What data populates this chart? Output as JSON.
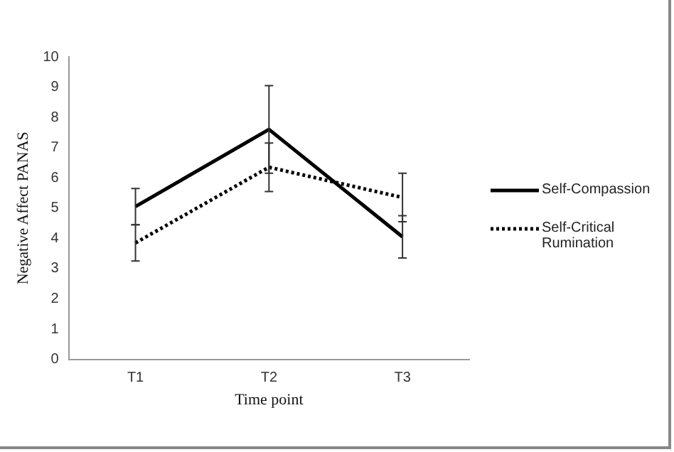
{
  "chart_data": {
    "type": "line",
    "xlabel": "Time point",
    "ylabel": "Negative Affect PANAS",
    "categories": [
      "T1",
      "T2",
      "T3"
    ],
    "series": [
      {
        "name": "Self-Compassion",
        "color": "#000000",
        "line_style": "solid",
        "values": [
          5.05,
          7.6,
          4.05
        ],
        "errors": [
          0.6,
          1.45,
          0.7
        ]
      },
      {
        "name": "Self-Critical Rumination",
        "color": "#000000",
        "line_style": "dotted",
        "values": [
          3.85,
          6.35,
          5.35
        ],
        "errors": [
          0.6,
          0.8,
          0.8
        ]
      }
    ],
    "ylim": [
      0,
      10
    ],
    "yticks": [
      0,
      1,
      2,
      3,
      4,
      5,
      6,
      7,
      8,
      9,
      10
    ],
    "grid": false,
    "legend": "right",
    "marker": "none"
  }
}
